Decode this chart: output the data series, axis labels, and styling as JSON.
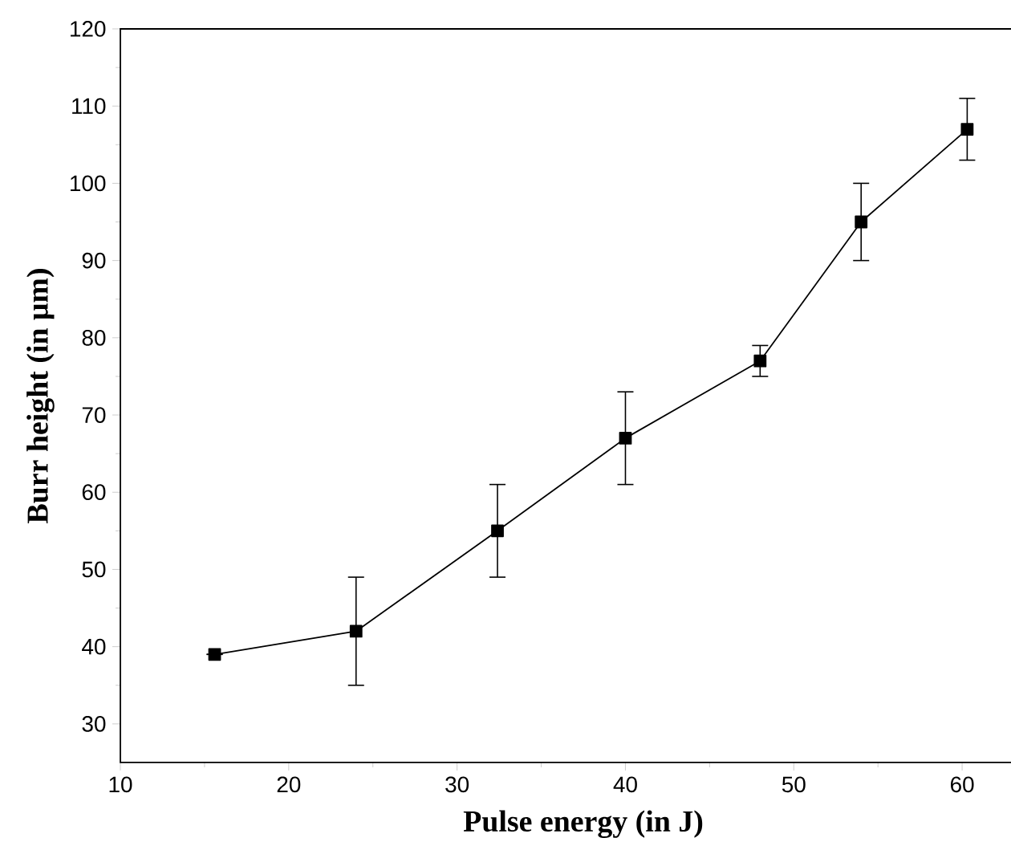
{
  "chart_data": {
    "type": "line",
    "xlabel": "Pulse energy (in J)",
    "ylabel": "Burr height (in μm)",
    "x": [
      15.6,
      24,
      32.4,
      40,
      48,
      54,
      60.3
    ],
    "series": [
      {
        "color": "#000000",
        "values": [
          39,
          42,
          55,
          67,
          77,
          95,
          107
        ],
        "errors": [
          null,
          7,
          6,
          6,
          2,
          5,
          4
        ]
      }
    ],
    "marker": "square",
    "line_style": "solid",
    "xlim": [
      10,
      65
    ],
    "xticks": [
      10,
      20,
      30,
      40,
      50,
      60
    ],
    "ylim": [
      25,
      120
    ],
    "yticks": [
      30,
      40,
      50,
      60,
      70,
      80,
      90,
      100,
      110,
      120
    ]
  }
}
